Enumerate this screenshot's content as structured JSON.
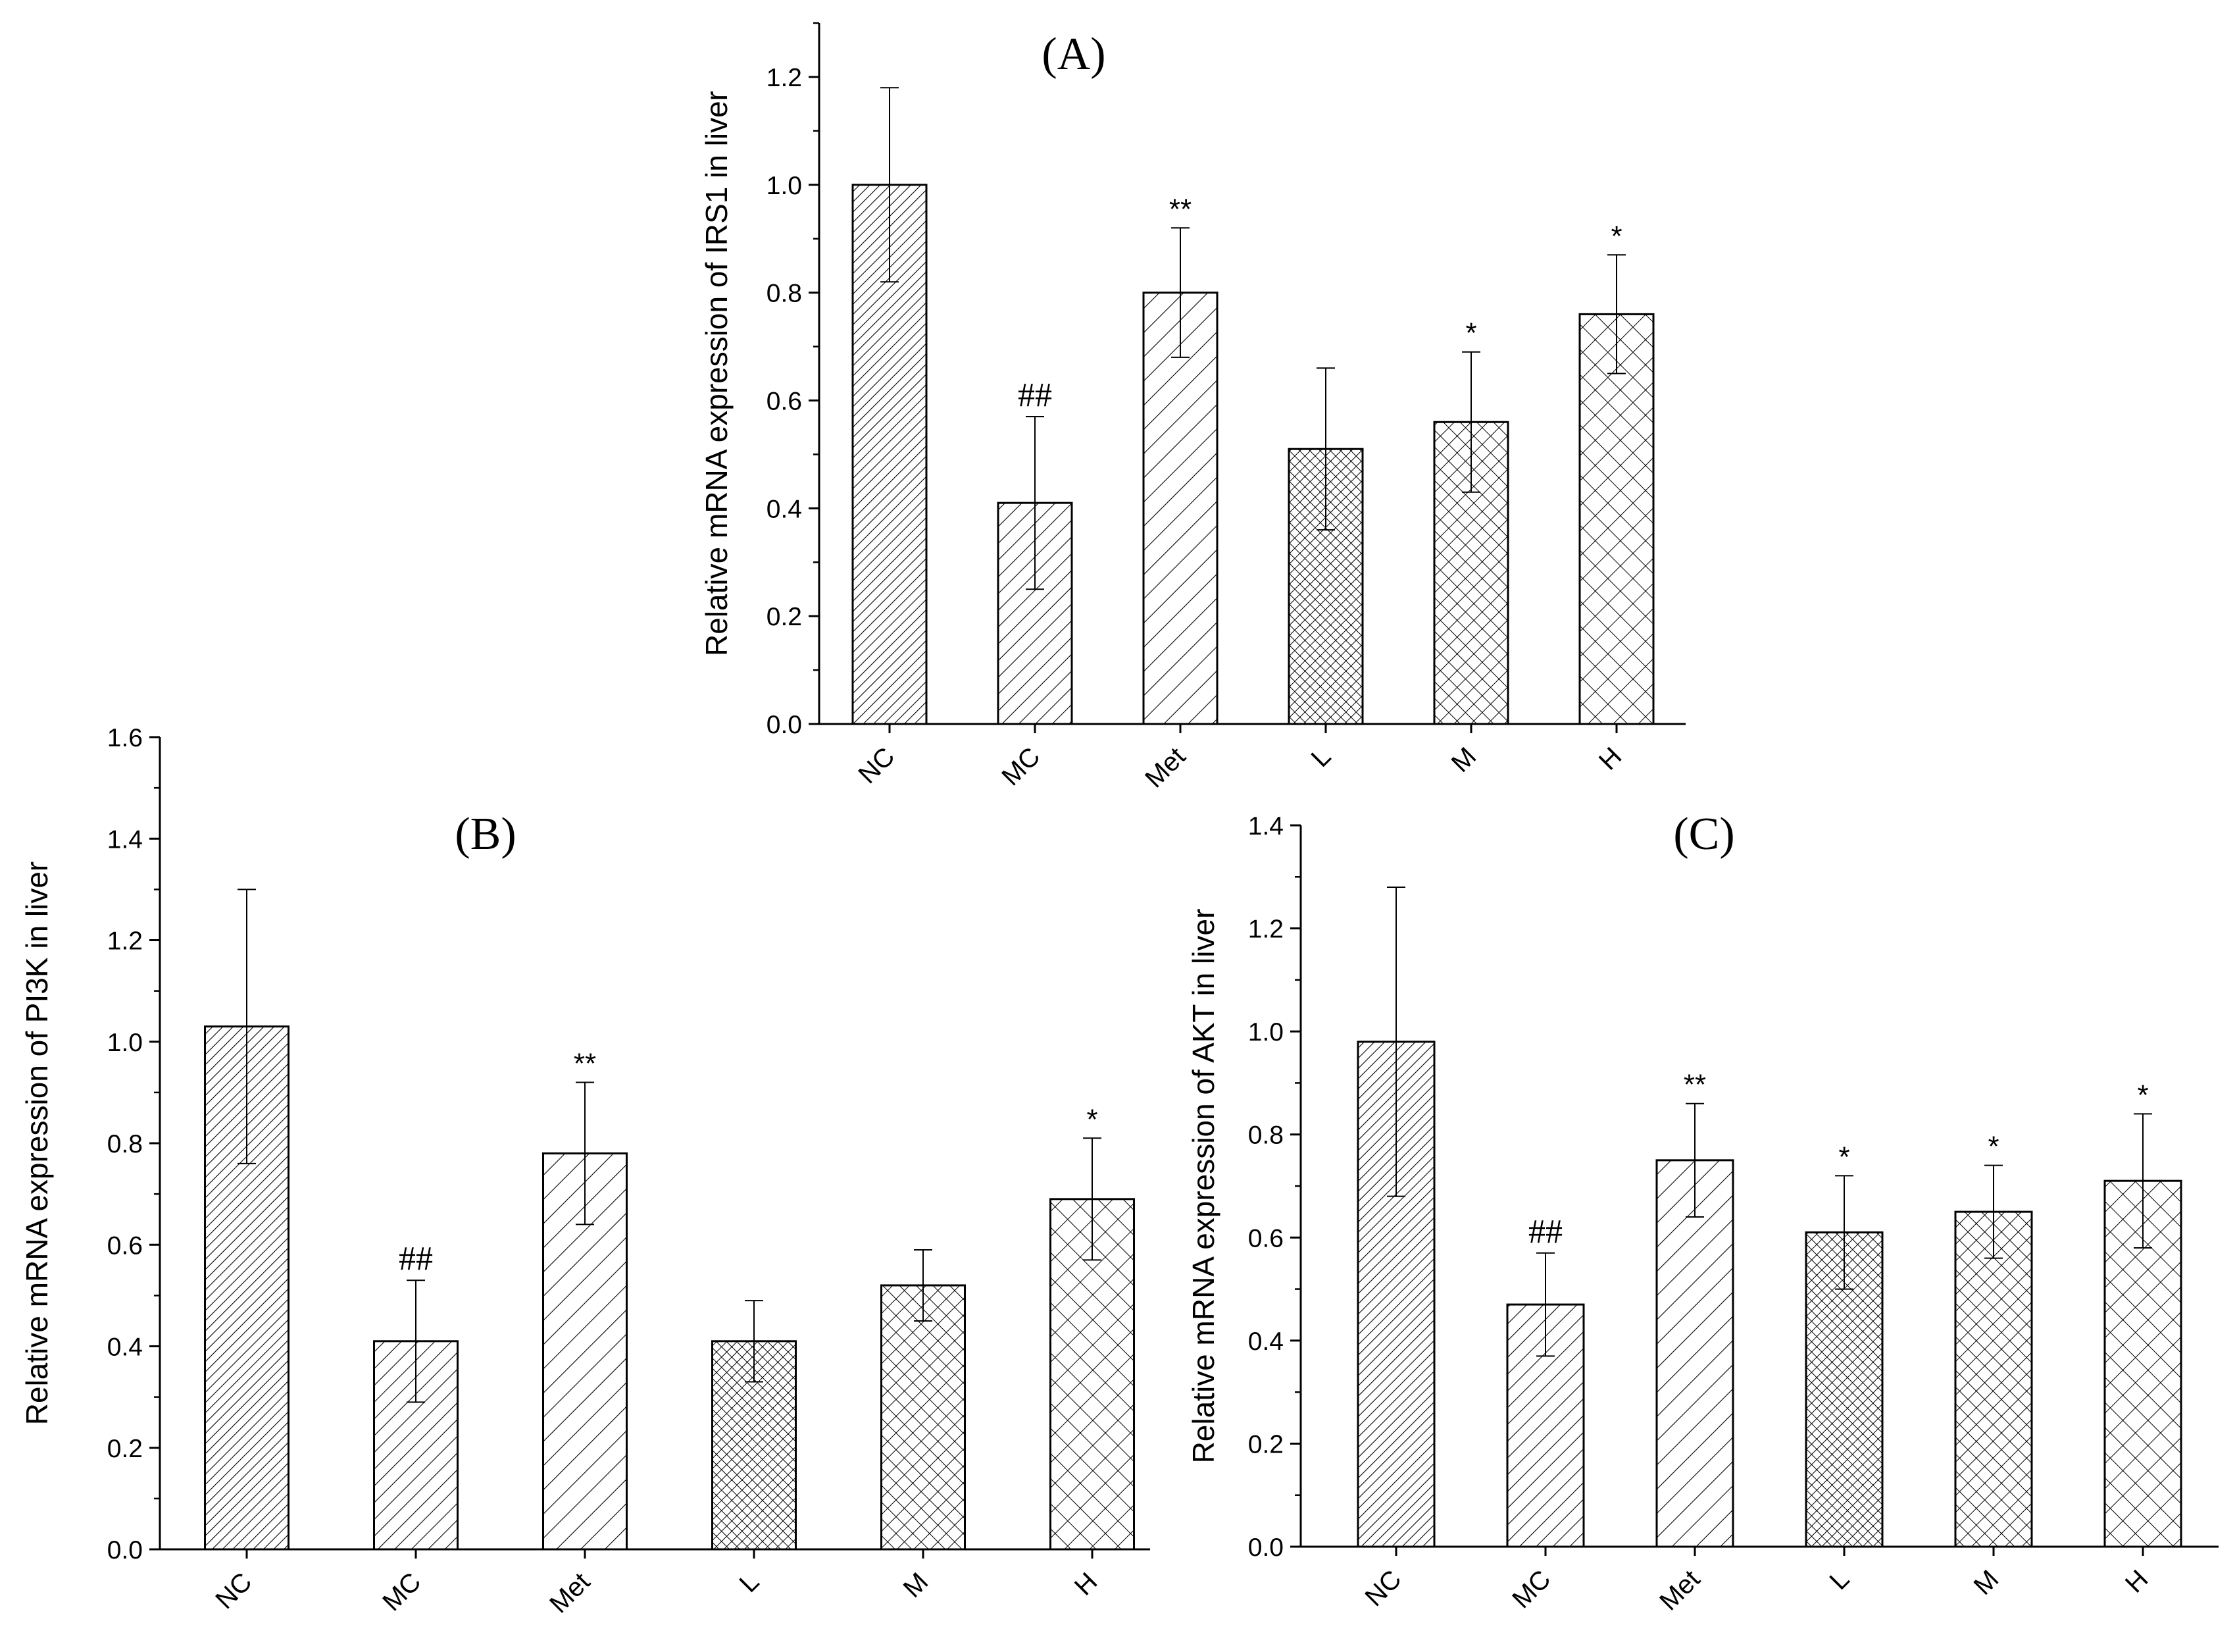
{
  "chart_data": [
    {
      "id": "A",
      "type": "bar",
      "panel_label": "(A)",
      "ylabel": "Relative mRNA expression of IRS1 in liver",
      "xlabel": "",
      "categories": [
        "NC",
        "MC",
        "Met",
        "L",
        "M",
        "H"
      ],
      "values": [
        1.0,
        0.41,
        0.8,
        0.51,
        0.56,
        0.76
      ],
      "errors": [
        0.18,
        0.16,
        0.12,
        0.15,
        0.13,
        0.11
      ],
      "annotations": [
        "",
        "##",
        "**",
        "",
        "*",
        "*"
      ],
      "ylim": [
        0,
        1.3
      ],
      "yticks": [
        "0.0",
        "0.2",
        "0.4",
        "0.6",
        "0.8",
        "1.0",
        "1.2"
      ],
      "patterns": [
        "diag-fine",
        "diag-med",
        "diag-wide",
        "cross-fine",
        "cross-med",
        "cross-wide"
      ]
    },
    {
      "id": "B",
      "type": "bar",
      "panel_label": "(B)",
      "ylabel": "Relative mRNA expression of PI3K in liver",
      "xlabel": "",
      "categories": [
        "NC",
        "MC",
        "Met",
        "L",
        "M",
        "H"
      ],
      "values": [
        1.03,
        0.41,
        0.78,
        0.41,
        0.52,
        0.69
      ],
      "errors": [
        0.27,
        0.12,
        0.14,
        0.08,
        0.07,
        0.12
      ],
      "annotations": [
        "",
        "##",
        "**",
        "",
        "",
        "*"
      ],
      "ylim": [
        0,
        1.6
      ],
      "yticks": [
        "0.0",
        "0.2",
        "0.4",
        "0.6",
        "0.8",
        "1.0",
        "1.2",
        "1.4",
        "1.6"
      ],
      "patterns": [
        "diag-fine",
        "diag-med",
        "diag-wide",
        "cross-fine",
        "cross-med",
        "cross-wide"
      ]
    },
    {
      "id": "C",
      "type": "bar",
      "panel_label": "(C)",
      "ylabel": "Relative  mRNA expression of AKT in liver",
      "xlabel": "",
      "categories": [
        "NC",
        "MC",
        "Met",
        "L",
        "M",
        "H"
      ],
      "values": [
        0.98,
        0.47,
        0.75,
        0.61,
        0.65,
        0.71
      ],
      "errors": [
        0.3,
        0.1,
        0.11,
        0.11,
        0.09,
        0.13
      ],
      "annotations": [
        "",
        "##",
        "**",
        "*",
        "*",
        "*"
      ],
      "ylim": [
        0,
        1.4
      ],
      "yticks": [
        "0.0",
        "0.2",
        "0.4",
        "0.6",
        "0.8",
        "1.0",
        "1.2",
        "1.4"
      ],
      "patterns": [
        "diag-fine",
        "diag-med",
        "diag-wide",
        "cross-fine",
        "cross-med",
        "cross-wide"
      ]
    }
  ]
}
